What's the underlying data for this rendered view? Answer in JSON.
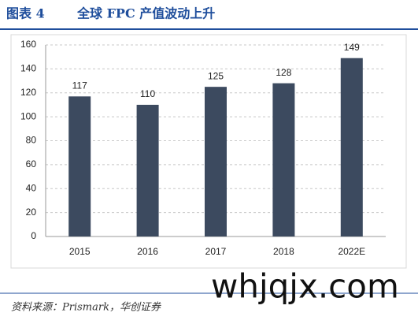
{
  "chart_data": {
    "type": "bar",
    "figure_label": "图表 4",
    "title": "全球 FPC 产值波动上升",
    "categories": [
      "2015",
      "2016",
      "2017",
      "2018",
      "2022E"
    ],
    "values": [
      117,
      110,
      125,
      128,
      149
    ],
    "color": "#3c4a5f",
    "ylim": [
      0,
      160
    ],
    "yticks": [
      0,
      20,
      40,
      60,
      80,
      100,
      120,
      140,
      160
    ],
    "grid": true,
    "source": "资料来源：Prismark，华创证券"
  },
  "watermark": "whjqjx.com"
}
